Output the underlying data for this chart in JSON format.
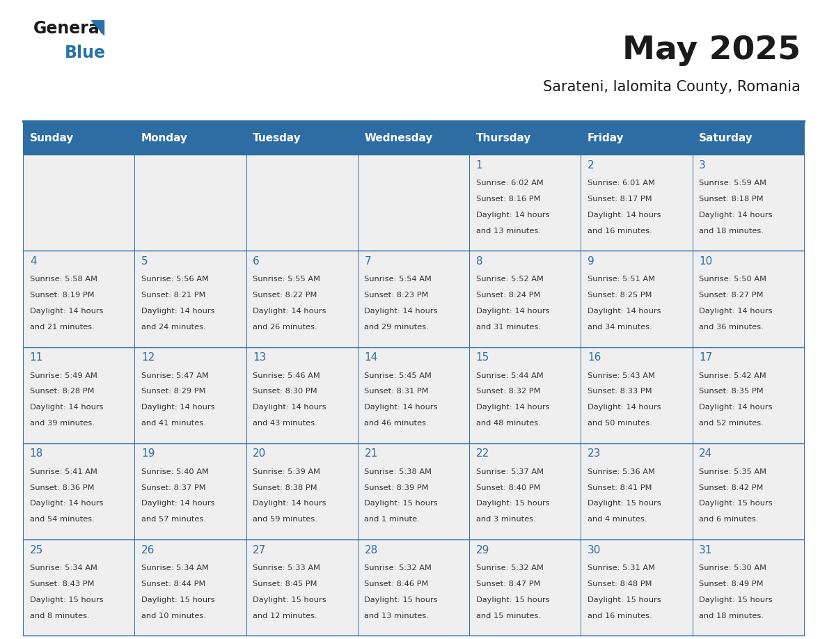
{
  "title": "May 2025",
  "subtitle": "Sarateni, Ialomita County, Romania",
  "days_of_week": [
    "Sunday",
    "Monday",
    "Tuesday",
    "Wednesday",
    "Thursday",
    "Friday",
    "Saturday"
  ],
  "header_bg_color": "#2E6DA4",
  "header_text_color": "#FFFFFF",
  "cell_bg_color": "#EFEFEF",
  "border_color": "#2E6DA4",
  "day_number_color": "#2E6DA4",
  "text_color": "#333333",
  "title_color": "#1a1a1a",
  "logo_general_color": "#1a1a1a",
  "logo_blue_color": "#2872A8",
  "weeks": [
    {
      "days": [
        {
          "date": "",
          "sunrise": "",
          "sunset": "",
          "daylight": ""
        },
        {
          "date": "",
          "sunrise": "",
          "sunset": "",
          "daylight": ""
        },
        {
          "date": "",
          "sunrise": "",
          "sunset": "",
          "daylight": ""
        },
        {
          "date": "",
          "sunrise": "",
          "sunset": "",
          "daylight": ""
        },
        {
          "date": "1",
          "sunrise": "6:02 AM",
          "sunset": "8:16 PM",
          "daylight": "14 hours\nand 13 minutes."
        },
        {
          "date": "2",
          "sunrise": "6:01 AM",
          "sunset": "8:17 PM",
          "daylight": "14 hours\nand 16 minutes."
        },
        {
          "date": "3",
          "sunrise": "5:59 AM",
          "sunset": "8:18 PM",
          "daylight": "14 hours\nand 18 minutes."
        }
      ]
    },
    {
      "days": [
        {
          "date": "4",
          "sunrise": "5:58 AM",
          "sunset": "8:19 PM",
          "daylight": "14 hours\nand 21 minutes."
        },
        {
          "date": "5",
          "sunrise": "5:56 AM",
          "sunset": "8:21 PM",
          "daylight": "14 hours\nand 24 minutes."
        },
        {
          "date": "6",
          "sunrise": "5:55 AM",
          "sunset": "8:22 PM",
          "daylight": "14 hours\nand 26 minutes."
        },
        {
          "date": "7",
          "sunrise": "5:54 AM",
          "sunset": "8:23 PM",
          "daylight": "14 hours\nand 29 minutes."
        },
        {
          "date": "8",
          "sunrise": "5:52 AM",
          "sunset": "8:24 PM",
          "daylight": "14 hours\nand 31 minutes."
        },
        {
          "date": "9",
          "sunrise": "5:51 AM",
          "sunset": "8:25 PM",
          "daylight": "14 hours\nand 34 minutes."
        },
        {
          "date": "10",
          "sunrise": "5:50 AM",
          "sunset": "8:27 PM",
          "daylight": "14 hours\nand 36 minutes."
        }
      ]
    },
    {
      "days": [
        {
          "date": "11",
          "sunrise": "5:49 AM",
          "sunset": "8:28 PM",
          "daylight": "14 hours\nand 39 minutes."
        },
        {
          "date": "12",
          "sunrise": "5:47 AM",
          "sunset": "8:29 PM",
          "daylight": "14 hours\nand 41 minutes."
        },
        {
          "date": "13",
          "sunrise": "5:46 AM",
          "sunset": "8:30 PM",
          "daylight": "14 hours\nand 43 minutes."
        },
        {
          "date": "14",
          "sunrise": "5:45 AM",
          "sunset": "8:31 PM",
          "daylight": "14 hours\nand 46 minutes."
        },
        {
          "date": "15",
          "sunrise": "5:44 AM",
          "sunset": "8:32 PM",
          "daylight": "14 hours\nand 48 minutes."
        },
        {
          "date": "16",
          "sunrise": "5:43 AM",
          "sunset": "8:33 PM",
          "daylight": "14 hours\nand 50 minutes."
        },
        {
          "date": "17",
          "sunrise": "5:42 AM",
          "sunset": "8:35 PM",
          "daylight": "14 hours\nand 52 minutes."
        }
      ]
    },
    {
      "days": [
        {
          "date": "18",
          "sunrise": "5:41 AM",
          "sunset": "8:36 PM",
          "daylight": "14 hours\nand 54 minutes."
        },
        {
          "date": "19",
          "sunrise": "5:40 AM",
          "sunset": "8:37 PM",
          "daylight": "14 hours\nand 57 minutes."
        },
        {
          "date": "20",
          "sunrise": "5:39 AM",
          "sunset": "8:38 PM",
          "daylight": "14 hours\nand 59 minutes."
        },
        {
          "date": "21",
          "sunrise": "5:38 AM",
          "sunset": "8:39 PM",
          "daylight": "15 hours\nand 1 minute."
        },
        {
          "date": "22",
          "sunrise": "5:37 AM",
          "sunset": "8:40 PM",
          "daylight": "15 hours\nand 3 minutes."
        },
        {
          "date": "23",
          "sunrise": "5:36 AM",
          "sunset": "8:41 PM",
          "daylight": "15 hours\nand 4 minutes."
        },
        {
          "date": "24",
          "sunrise": "5:35 AM",
          "sunset": "8:42 PM",
          "daylight": "15 hours\nand 6 minutes."
        }
      ]
    },
    {
      "days": [
        {
          "date": "25",
          "sunrise": "5:34 AM",
          "sunset": "8:43 PM",
          "daylight": "15 hours\nand 8 minutes."
        },
        {
          "date": "26",
          "sunrise": "5:34 AM",
          "sunset": "8:44 PM",
          "daylight": "15 hours\nand 10 minutes."
        },
        {
          "date": "27",
          "sunrise": "5:33 AM",
          "sunset": "8:45 PM",
          "daylight": "15 hours\nand 12 minutes."
        },
        {
          "date": "28",
          "sunrise": "5:32 AM",
          "sunset": "8:46 PM",
          "daylight": "15 hours\nand 13 minutes."
        },
        {
          "date": "29",
          "sunrise": "5:32 AM",
          "sunset": "8:47 PM",
          "daylight": "15 hours\nand 15 minutes."
        },
        {
          "date": "30",
          "sunrise": "5:31 AM",
          "sunset": "8:48 PM",
          "daylight": "15 hours\nand 16 minutes."
        },
        {
          "date": "31",
          "sunrise": "5:30 AM",
          "sunset": "8:49 PM",
          "daylight": "15 hours\nand 18 minutes."
        }
      ]
    }
  ]
}
